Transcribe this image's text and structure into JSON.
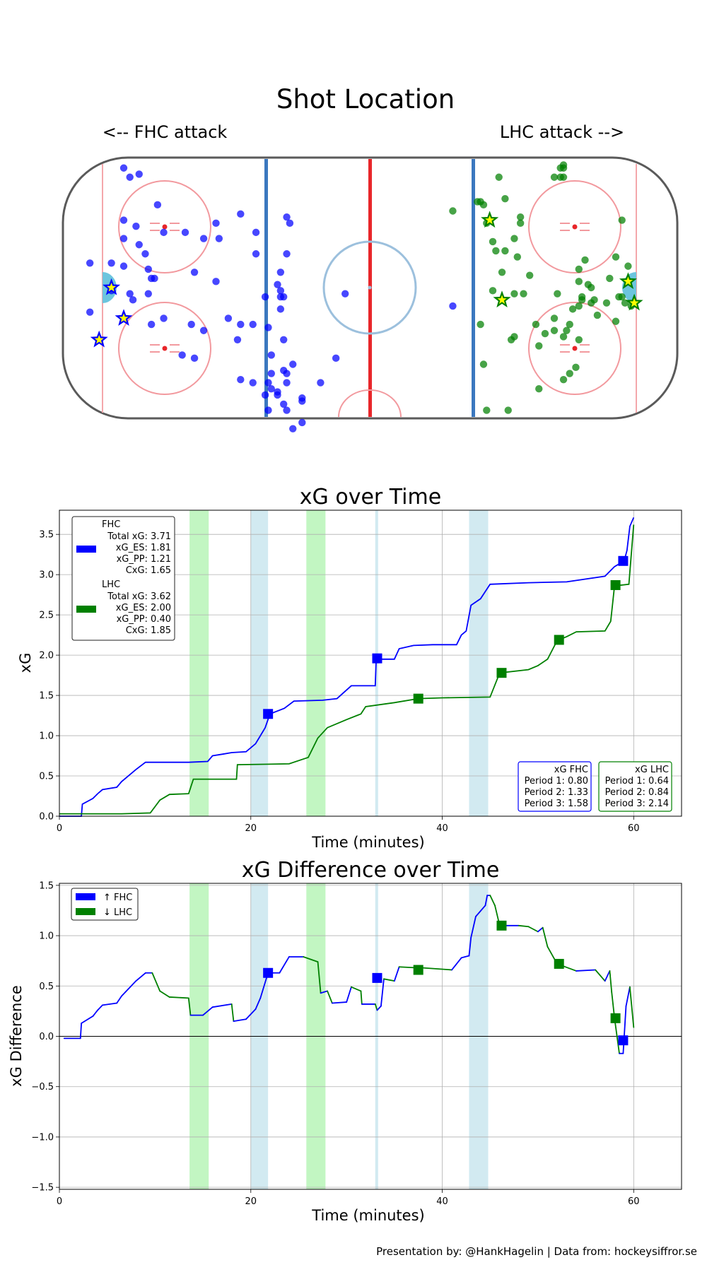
{
  "rink": {
    "title": "Shot Location",
    "left_label": "<-- FHC attack",
    "right_label": "LHC attack -->",
    "fhc_color": "#0000ff",
    "lhc_color": "#008000",
    "goal_marker_fill": "#ffff00",
    "fhc_shots": [
      [
        -91,
        8
      ],
      [
        -80,
        7
      ],
      [
        -91,
        -8
      ],
      [
        -84,
        -1
      ],
      [
        -84,
        8
      ],
      [
        -78,
        -2
      ],
      [
        -80,
        16
      ],
      [
        -76,
        20
      ],
      [
        -75,
        14
      ],
      [
        -73,
        11
      ],
      [
        -72,
        6
      ],
      [
        -71,
        3
      ],
      [
        -70,
        3
      ],
      [
        -72,
        -2
      ],
      [
        -77,
        -4
      ],
      [
        -71,
        -12
      ],
      [
        -67,
        -10
      ],
      [
        -57,
        -23
      ],
      [
        -61,
        -22
      ],
      [
        -58,
        -12
      ],
      [
        -54,
        -14
      ],
      [
        -43,
        -17
      ],
      [
        -57,
        5
      ],
      [
        -50,
        21
      ],
      [
        -49,
        16
      ],
      [
        -80,
        22
      ],
      [
        -80,
        39
      ],
      [
        -78,
        36
      ],
      [
        -75,
        37
      ],
      [
        -69,
        27
      ],
      [
        -67,
        18
      ],
      [
        -60,
        18
      ],
      [
        -54,
        16
      ],
      [
        -50,
        2
      ],
      [
        -42,
        24
      ],
      [
        -38,
        -12
      ],
      [
        -42,
        -12
      ],
      [
        -46,
        -10
      ],
      [
        -42,
        -30
      ],
      [
        -32,
        -28
      ],
      [
        -27,
        -28
      ],
      [
        -27,
        -40
      ],
      [
        -33,
        -40
      ],
      [
        -34,
        -35
      ],
      [
        -32,
        -33
      ],
      [
        -33,
        -31
      ],
      [
        -37,
        11
      ],
      [
        -37,
        18
      ],
      [
        -38,
        -31
      ],
      [
        -33,
        -13
      ],
      [
        -28,
        -3
      ],
      [
        -30,
        1
      ],
      [
        -28,
        -17
      ],
      [
        -32,
        -22
      ],
      [
        -29,
        -3
      ],
      [
        -29,
        5
      ],
      [
        -27,
        11
      ],
      [
        -26,
        21
      ],
      [
        -27,
        23
      ],
      [
        -28,
        -38
      ],
      [
        -30,
        -34
      ],
      [
        -28,
        -27
      ],
      [
        -29,
        -7
      ],
      [
        -29,
        -1
      ],
      [
        -34,
        -3
      ],
      [
        -22,
        -44
      ],
      [
        -25,
        -46
      ],
      [
        -25,
        -25
      ],
      [
        -16,
        -31
      ],
      [
        -8,
        -2
      ],
      [
        -11,
        -23
      ],
      [
        -22,
        -37
      ],
      [
        -30,
        -35
      ],
      [
        -22,
        -36
      ],
      [
        -27,
        -31
      ],
      [
        27,
        -6
      ]
    ],
    "lhc_shots": [
      [
        42,
        36
      ],
      [
        63,
        39
      ],
      [
        62,
        36
      ],
      [
        62,
        39
      ],
      [
        63,
        40
      ],
      [
        63,
        36
      ],
      [
        27,
        25
      ],
      [
        52,
        4
      ],
      [
        50,
        -2
      ],
      [
        35,
        28
      ],
      [
        36,
        28
      ],
      [
        37,
        27
      ],
      [
        44,
        29
      ],
      [
        38,
        21
      ],
      [
        40,
        15
      ],
      [
        41,
        12
      ],
      [
        40,
        -1
      ],
      [
        43,
        5
      ],
      [
        46,
        -17
      ],
      [
        47,
        -16
      ],
      [
        60,
        -14
      ],
      [
        63,
        -16
      ],
      [
        64,
        -14
      ],
      [
        68,
        -17
      ],
      [
        72,
        0
      ],
      [
        77,
        -5
      ],
      [
        81,
        -3
      ],
      [
        68,
        6
      ],
      [
        69,
        -3
      ],
      [
        69,
        -4
      ],
      [
        36,
        -12
      ],
      [
        37,
        -25
      ],
      [
        45,
        -40
      ],
      [
        47,
        -2
      ],
      [
        55,
        -33
      ],
      [
        65,
        -28
      ],
      [
        67,
        -26
      ],
      [
        72,
        -5
      ],
      [
        82,
        22
      ],
      [
        80,
        -11
      ],
      [
        82,
        -3
      ],
      [
        83,
        -5
      ],
      [
        85,
        -6
      ],
      [
        84,
        7
      ],
      [
        78,
        3
      ],
      [
        71,
        1
      ],
      [
        68,
        2
      ],
      [
        80,
        10
      ],
      [
        70,
        9
      ],
      [
        73,
        -4
      ],
      [
        68,
        -6
      ],
      [
        61,
        -2
      ],
      [
        63,
        -30
      ],
      [
        47,
        16
      ],
      [
        38,
        -40
      ],
      [
        60,
        36
      ],
      [
        66,
        -7
      ],
      [
        55,
        -19
      ],
      [
        54,
        -12
      ],
      [
        57,
        -15
      ],
      [
        60,
        -10
      ],
      [
        65,
        -12
      ],
      [
        74,
        -9
      ],
      [
        49,
        21
      ],
      [
        49,
        23
      ],
      [
        48,
        10
      ],
      [
        44,
        12
      ]
    ],
    "fhc_goals": [
      [
        -84,
        0
      ],
      [
        -80,
        -10
      ],
      [
        -88,
        -17
      ]
    ],
    "lhc_goals": [
      [
        39,
        22
      ],
      [
        43,
        -4
      ],
      [
        84,
        2
      ],
      [
        86,
        -5
      ]
    ]
  },
  "xg_over_time": {
    "chart_data": {
      "type": "line",
      "title": "xG over Time",
      "xlabel": "Time (minutes)",
      "ylabel": "xG",
      "xlim": [
        0,
        65
      ],
      "ylim": [
        0,
        3.8
      ],
      "xticks": [
        "0",
        "20",
        "40",
        "60"
      ],
      "yticks": [
        "0.0",
        "0.5",
        "1.0",
        "1.5",
        "2.0",
        "2.5",
        "3.0",
        "3.5"
      ],
      "series": [
        {
          "name": "FHC",
          "color": "#0000ff",
          "points": [
            [
              0,
              0.0
            ],
            [
              2.3,
              0.0
            ],
            [
              2.4,
              0.15
            ],
            [
              3.5,
              0.22
            ],
            [
              4,
              0.28
            ],
            [
              4.5,
              0.33
            ],
            [
              6,
              0.36
            ],
            [
              6.5,
              0.43
            ],
            [
              8,
              0.58
            ],
            [
              9,
              0.67
            ],
            [
              13.5,
              0.67
            ],
            [
              15.5,
              0.68
            ],
            [
              16,
              0.75
            ],
            [
              17,
              0.77
            ],
            [
              18,
              0.79
            ],
            [
              19.5,
              0.8
            ],
            [
              20.5,
              0.9
            ],
            [
              21,
              1.0
            ],
            [
              21.5,
              1.1
            ],
            [
              22,
              1.27
            ],
            [
              23.5,
              1.34
            ],
            [
              24.5,
              1.43
            ],
            [
              27.5,
              1.44
            ],
            [
              29,
              1.46
            ],
            [
              30.5,
              1.62
            ],
            [
              33,
              1.62
            ],
            [
              33.1,
              1.95
            ],
            [
              35,
              1.95
            ],
            [
              35.5,
              2.08
            ],
            [
              37,
              2.12
            ],
            [
              39,
              2.13
            ],
            [
              41.5,
              2.13
            ],
            [
              42,
              2.25
            ],
            [
              42.5,
              2.3
            ],
            [
              43,
              2.62
            ],
            [
              44,
              2.7
            ],
            [
              45,
              2.88
            ],
            [
              49,
              2.9
            ],
            [
              53,
              2.91
            ],
            [
              57,
              2.98
            ],
            [
              58,
              3.1
            ],
            [
              59,
              3.17
            ],
            [
              59.3,
              3.3
            ],
            [
              59.6,
              3.6
            ],
            [
              60,
              3.71
            ]
          ],
          "markers": [
            [
              21.8,
              1.27
            ],
            [
              33.2,
              1.96
            ],
            [
              58.9,
              3.17
            ]
          ]
        },
        {
          "name": "LHC",
          "color": "#008000",
          "points": [
            [
              0,
              0.03
            ],
            [
              6.5,
              0.03
            ],
            [
              9.5,
              0.04
            ],
            [
              10.5,
              0.2
            ],
            [
              11.5,
              0.27
            ],
            [
              13.5,
              0.28
            ],
            [
              14,
              0.46
            ],
            [
              18.5,
              0.46
            ],
            [
              18.6,
              0.64
            ],
            [
              24,
              0.65
            ],
            [
              26,
              0.73
            ],
            [
              27,
              0.97
            ],
            [
              28,
              1.1
            ],
            [
              30,
              1.2
            ],
            [
              31.5,
              1.27
            ],
            [
              32,
              1.36
            ],
            [
              35,
              1.41
            ],
            [
              37.5,
              1.46
            ],
            [
              40,
              1.47
            ],
            [
              45,
              1.48
            ],
            [
              46,
              1.78
            ],
            [
              49,
              1.82
            ],
            [
              50,
              1.87
            ],
            [
              51,
              1.95
            ],
            [
              52,
              2.18
            ],
            [
              53,
              2.23
            ],
            [
              54,
              2.29
            ],
            [
              57,
              2.3
            ],
            [
              57.6,
              2.42
            ],
            [
              58,
              2.86
            ],
            [
              59.5,
              2.88
            ],
            [
              60,
              3.62
            ]
          ],
          "markers": [
            [
              37.5,
              1.46
            ],
            [
              46.2,
              1.78
            ],
            [
              52.2,
              2.19
            ],
            [
              58.1,
              2.87
            ]
          ]
        }
      ],
      "bands": [
        {
          "start": 13.6,
          "end": 15.6,
          "team": "LHC PP"
        },
        {
          "start": 20.0,
          "end": 21.8,
          "team": "FHC PP"
        },
        {
          "start": 25.8,
          "end": 27.8,
          "team": "LHC PP"
        },
        {
          "start": 33.0,
          "end": 33.3,
          "team": "FHC PP"
        },
        {
          "start": 42.8,
          "end": 44.8,
          "team": "FHC PP"
        }
      ]
    },
    "legend": {
      "fhc_title": "FHC",
      "fhc_lines": [
        "Total xG: 3.71",
        "xG_ES: 1.81",
        "xG_PP: 1.21",
        "CxG: 1.65"
      ],
      "lhc_title": "LHC",
      "lhc_lines": [
        "Total xG: 3.62",
        "xG_ES: 2.00",
        "xG_PP: 0.40",
        "CxG: 1.85"
      ]
    },
    "period_boxes": {
      "fhc_title": "xG FHC",
      "fhc_lines": [
        "Period 1: 0.80",
        "Period 2: 1.33",
        "Period 3: 1.58"
      ],
      "lhc_title": "xG LHC",
      "lhc_lines": [
        "Period 1: 0.64",
        "Period 2: 0.84",
        "Period 3: 2.14"
      ]
    }
  },
  "xg_difference": {
    "chart_data": {
      "type": "line",
      "title": "xG Difference over Time",
      "xlabel": "Time (minutes)",
      "ylabel": "xG Difference",
      "xlim": [
        0,
        65
      ],
      "ylim": [
        -1.52,
        1.52
      ],
      "xticks": [
        "0",
        "20",
        "40",
        "60"
      ],
      "yticks": [
        "1.5",
        "1.0",
        "0.5",
        "0.0",
        "−0.5",
        "−1.0",
        "−1.5"
      ],
      "points": [
        [
          0.5,
          -0.02
        ],
        [
          2.2,
          -0.02
        ],
        [
          2.3,
          0.13
        ],
        [
          3.5,
          0.2
        ],
        [
          4,
          0.26
        ],
        [
          4.5,
          0.31
        ],
        [
          6,
          0.33
        ],
        [
          6.5,
          0.4
        ],
        [
          8,
          0.55
        ],
        [
          9,
          0.63
        ],
        [
          9.7,
          0.63
        ],
        [
          10.5,
          0.45
        ],
        [
          11.5,
          0.39
        ],
        [
          13.5,
          0.38
        ],
        [
          13.7,
          0.21
        ],
        [
          15,
          0.21
        ],
        [
          16,
          0.29
        ],
        [
          18,
          0.32
        ],
        [
          18.2,
          0.15
        ],
        [
          19.5,
          0.17
        ],
        [
          20.5,
          0.27
        ],
        [
          21,
          0.38
        ],
        [
          21.8,
          0.63
        ],
        [
          23,
          0.63
        ],
        [
          24,
          0.79
        ],
        [
          25.5,
          0.79
        ],
        [
          27,
          0.74
        ],
        [
          27.3,
          0.43
        ],
        [
          28,
          0.45
        ],
        [
          28.5,
          0.33
        ],
        [
          30,
          0.34
        ],
        [
          30.5,
          0.49
        ],
        [
          31.5,
          0.45
        ],
        [
          31.6,
          0.32
        ],
        [
          33,
          0.32
        ],
        [
          33.2,
          0.26
        ],
        [
          33.6,
          0.3
        ],
        [
          33.9,
          0.57
        ],
        [
          35,
          0.55
        ],
        [
          35.5,
          0.69
        ],
        [
          37.5,
          0.68
        ],
        [
          38,
          0.68
        ],
        [
          41,
          0.66
        ],
        [
          42,
          0.78
        ],
        [
          42.8,
          0.8
        ],
        [
          43,
          0.98
        ],
        [
          43.5,
          1.19
        ],
        [
          44.5,
          1.3
        ],
        [
          44.7,
          1.4
        ],
        [
          45,
          1.4
        ],
        [
          45.5,
          1.3
        ],
        [
          46,
          1.1
        ],
        [
          48,
          1.1
        ],
        [
          49,
          1.09
        ],
        [
          50,
          1.04
        ],
        [
          50.5,
          1.08
        ],
        [
          51,
          0.89
        ],
        [
          52,
          0.72
        ],
        [
          54,
          0.65
        ],
        [
          56,
          0.66
        ],
        [
          57,
          0.55
        ],
        [
          57.5,
          0.65
        ],
        [
          57.7,
          0.44
        ],
        [
          58,
          0.18
        ],
        [
          58.5,
          -0.17
        ],
        [
          58.9,
          -0.17
        ],
        [
          59.2,
          0.3
        ],
        [
          59.6,
          0.49
        ],
        [
          60,
          0.09
        ]
      ],
      "fhc_markers": [
        [
          21.8,
          0.63
        ],
        [
          33.2,
          0.58
        ],
        [
          58.9,
          -0.04
        ]
      ],
      "lhc_markers": [
        [
          37.5,
          0.66
        ],
        [
          46.2,
          1.1
        ],
        [
          52.2,
          0.72
        ],
        [
          58.1,
          0.18
        ]
      ],
      "bands": [
        {
          "start": 13.6,
          "end": 15.6,
          "team": "LHC PP"
        },
        {
          "start": 20.0,
          "end": 21.8,
          "team": "FHC PP"
        },
        {
          "start": 25.8,
          "end": 27.8,
          "team": "LHC PP"
        },
        {
          "start": 33.0,
          "end": 33.3,
          "team": "FHC PP"
        },
        {
          "start": 42.8,
          "end": 44.8,
          "team": "FHC PP"
        }
      ]
    },
    "legend": {
      "fhc_label": "↑ FHC",
      "lhc_label": "↓ LHC"
    }
  },
  "colors": {
    "fhc": "#0000ff",
    "lhc": "#008000",
    "fhc_band": "#add8e6",
    "lhc_band": "#90ee90",
    "rink_blue": "#3b78bf",
    "rink_red": "#e8262a",
    "rink_faceoff": "#f2999e",
    "crease": "#6cc5de"
  },
  "footer": {
    "credit": "Presentation by: @HankHagelin | Data from: hockeysiffror.se"
  }
}
